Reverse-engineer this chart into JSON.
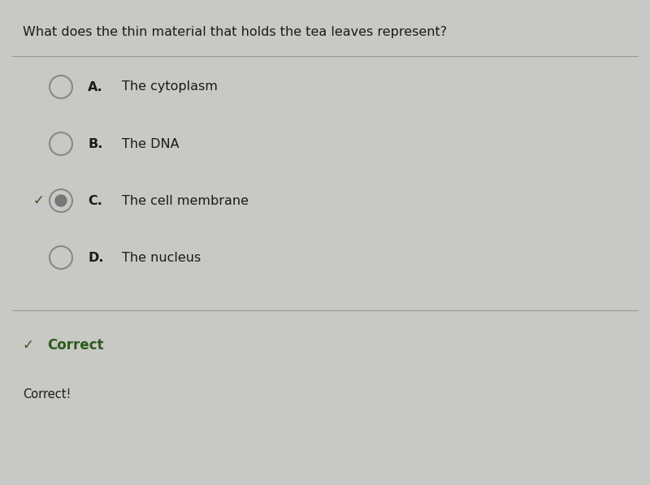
{
  "background_color": "#c8c8c4",
  "question": "What does the thin material that holds the tea leaves represent?",
  "question_fontsize": 11.5,
  "question_color": "#1a1a1a",
  "options": [
    {
      "letter": "A",
      "text": "The cytoplasm",
      "selected": false,
      "correct": false
    },
    {
      "letter": "B",
      "text": "The DNA",
      "selected": false,
      "correct": false
    },
    {
      "letter": "C",
      "text": "The cell membrane",
      "selected": true,
      "correct": true
    },
    {
      "letter": "D",
      "text": "The nucleus",
      "selected": false,
      "correct": false
    }
  ],
  "option_fontsize": 11.5,
  "option_color": "#1a1a1a",
  "letter_fontsize": 11.5,
  "divider_color": "#999999",
  "correct_label": "Correct",
  "correct_label_fontsize": 12,
  "correct_label_color": "#2d5a1b",
  "correct_detail": "Correct!",
  "correct_detail_fontsize": 10.5,
  "correct_detail_color": "#1a1a1a",
  "checkmark_color": "#2d5a1b",
  "circle_edge_color": "#888888",
  "circle_linewidth": 1.5,
  "selected_inner_color": "#777777",
  "selected_outer_color": "#888888"
}
